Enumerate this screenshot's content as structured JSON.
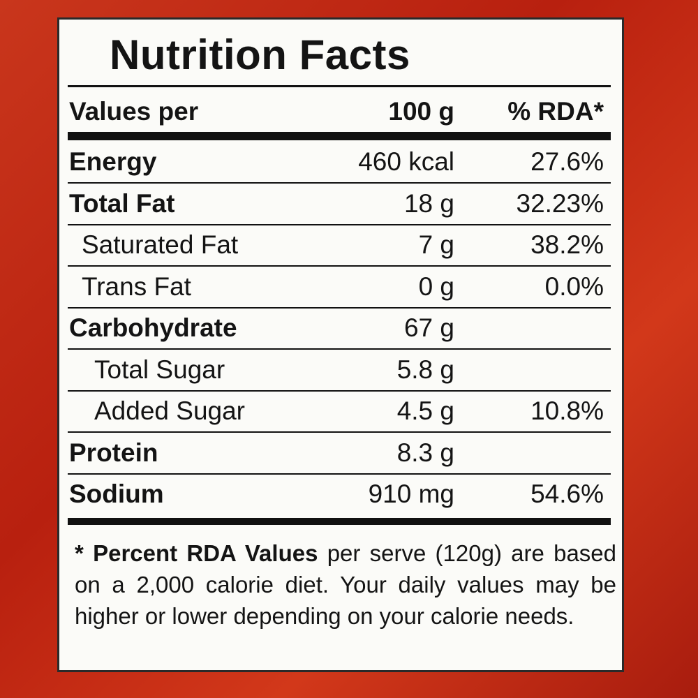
{
  "title": "Nutrition Facts",
  "header": {
    "label": "Values per",
    "amount": "100 g",
    "rda": "% RDA*"
  },
  "rows": [
    {
      "name": "Energy",
      "amount": "460 kcal",
      "rda": "27.6%",
      "bold": true,
      "indent": 0
    },
    {
      "name": "Total Fat",
      "amount": "18 g",
      "rda": "32.23%",
      "bold": true,
      "indent": 0
    },
    {
      "name": "Saturated Fat",
      "amount": "7 g",
      "rda": "38.2%",
      "bold": false,
      "indent": 1
    },
    {
      "name": "Trans Fat",
      "amount": "0 g",
      "rda": "0.0%",
      "bold": false,
      "indent": 1
    },
    {
      "name": "Carbohydrate",
      "amount": "67 g",
      "bold": true,
      "indent": 0
    },
    {
      "name": "Total Sugar",
      "amount": "5.8 g",
      "bold": false,
      "indent": 2
    },
    {
      "name": "Added Sugar",
      "amount": "4.5 g",
      "rda": "10.8%",
      "bold": false,
      "indent": 2
    },
    {
      "name": "Protein",
      "amount": "8.3 g",
      "bold": true,
      "indent": 0
    },
    {
      "name": "Sodium",
      "amount": "910 mg",
      "rda": "54.6%",
      "bold": true,
      "indent": 0
    }
  ],
  "footnote": {
    "marker": "*",
    "emphasis": "Percent RDA Values",
    "text": "per serve (120g) are based on a 2,000 calorie diet. Your daily values may be higher or lower depending on your calorie needs."
  }
}
